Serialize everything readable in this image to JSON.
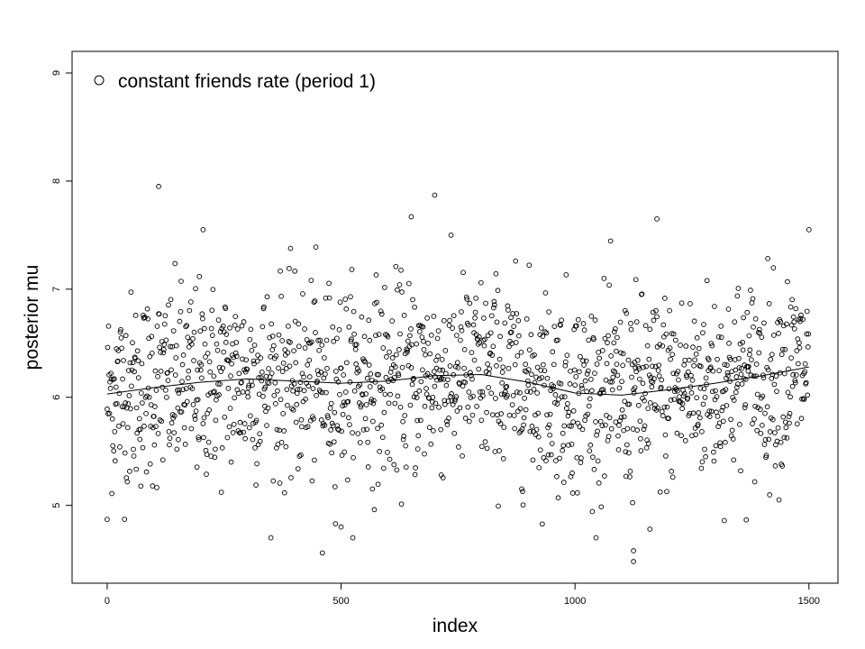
{
  "chart_data": {
    "type": "scatter",
    "title": "",
    "xlabel": "index",
    "ylabel": "posterior mu",
    "xlim": [
      -75,
      1562
    ],
    "ylim": [
      4.28,
      9.2
    ],
    "xticks": [
      0,
      500,
      1000,
      1500
    ],
    "yticks": [
      5,
      6,
      7,
      8,
      9
    ],
    "grid": false,
    "legend": {
      "placement": "top-left",
      "entries": [
        {
          "label": "constant friends rate (period 1)",
          "marker": "open-circle"
        }
      ]
    },
    "marker_color": "#000000",
    "n_points": 1500,
    "residual_sd": 0.45,
    "notable_points": [
      {
        "x": 110,
        "y": 7.95
      },
      {
        "x": 700,
        "y": 7.87
      },
      {
        "x": 650,
        "y": 7.67
      },
      {
        "x": 1175,
        "y": 7.65
      },
      {
        "x": 1500,
        "y": 7.55
      },
      {
        "x": 205,
        "y": 7.55
      },
      {
        "x": 460,
        "y": 4.56
      },
      {
        "x": 1125,
        "y": 4.48
      },
      {
        "x": 1125,
        "y": 4.58
      },
      {
        "x": 0,
        "y": 4.87
      },
      {
        "x": 1160,
        "y": 4.78
      },
      {
        "x": 500,
        "y": 4.8
      }
    ],
    "smooth_line": {
      "x": [
        0,
        100,
        200,
        300,
        400,
        500,
        600,
        700,
        800,
        900,
        1000,
        1100,
        1200,
        1300,
        1400,
        1500
      ],
      "y": [
        6.03,
        6.09,
        6.14,
        6.17,
        6.15,
        6.13,
        6.15,
        6.2,
        6.21,
        6.14,
        6.04,
        6.02,
        6.07,
        6.13,
        6.2,
        6.28
      ]
    }
  }
}
